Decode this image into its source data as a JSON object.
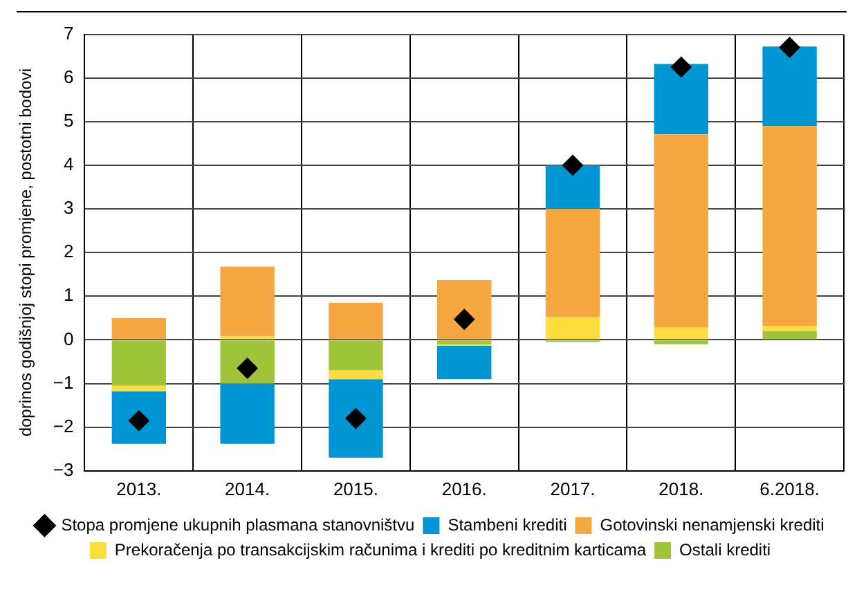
{
  "chart_data": {
    "type": "bar",
    "stacked": true,
    "ylabel": "doprinos godišnjoj stopi promjene, postotni bodovi",
    "categories": [
      "2013.",
      "2014.",
      "2015.",
      "2016.",
      "2017.",
      "2018.",
      "6.2018."
    ],
    "ylim": [
      -3,
      7
    ],
    "yticks": [
      -3,
      -2,
      -1,
      0,
      1,
      2,
      3,
      4,
      5,
      6,
      7
    ],
    "grid": true,
    "legend": "bottom",
    "series": [
      {
        "name": "Ostali krediti",
        "color": "#9fc43a",
        "values": [
          -1.05,
          -1.0,
          -0.7,
          -0.1,
          -0.05,
          -0.1,
          0.2
        ]
      },
      {
        "name": "Prekoračenja po transakcijskim računima i krediti po kreditnim karticama",
        "color": "#fedd3f",
        "values": [
          -0.13,
          0.08,
          -0.2,
          -0.03,
          0.52,
          0.28,
          0.12
        ]
      },
      {
        "name": "Gotovinski nenamjenski krediti",
        "color": "#f5a742",
        "values": [
          0.5,
          1.6,
          0.85,
          1.37,
          2.48,
          4.43,
          4.58
        ]
      },
      {
        "name": "Stambeni krediti",
        "color": "#0096d4",
        "values": [
          -1.2,
          -1.38,
          -1.8,
          -0.77,
          1.0,
          1.61,
          1.82
        ]
      },
      {
        "name": "Stopa promjene ukupnih plasmana stanovništvu",
        "type": "scatter",
        "marker": "diamond",
        "color": "#000000",
        "values": [
          -1.85,
          -0.65,
          -1.8,
          0.47,
          4.0,
          6.25,
          6.7
        ]
      }
    ]
  }
}
